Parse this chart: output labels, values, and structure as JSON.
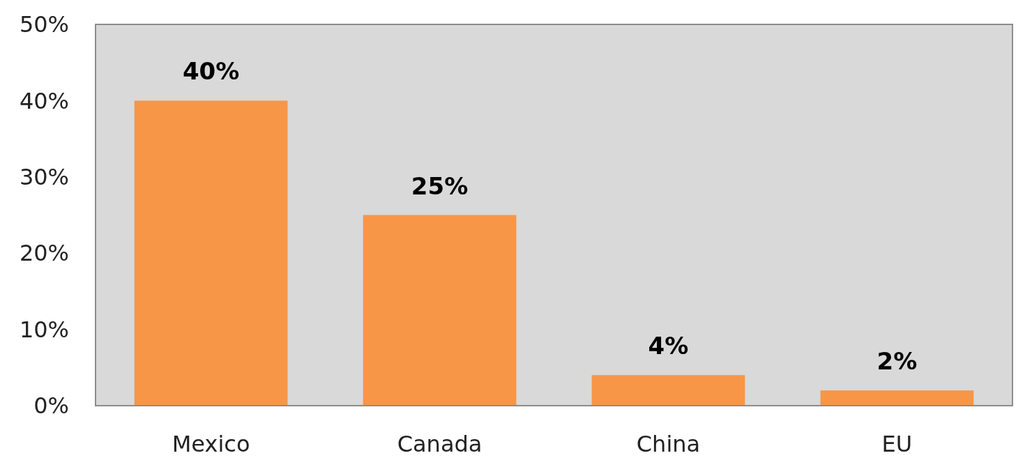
{
  "chart_data": {
    "type": "bar",
    "categories": [
      "Mexico",
      "Canada",
      "China",
      "EU"
    ],
    "values": [
      40,
      25,
      4,
      2
    ],
    "value_labels": [
      "40%",
      "25%",
      "4%",
      "2%"
    ],
    "color": "#f79646",
    "ylim": [
      0,
      50
    ],
    "yticks": [
      {
        "value": 0,
        "label": "0%"
      },
      {
        "value": 10,
        "label": "10%"
      },
      {
        "value": 20,
        "label": "20%"
      },
      {
        "value": 30,
        "label": "30%"
      },
      {
        "value": 40,
        "label": "40%"
      },
      {
        "value": 50,
        "label": "50%"
      }
    ],
    "grid": false
  }
}
